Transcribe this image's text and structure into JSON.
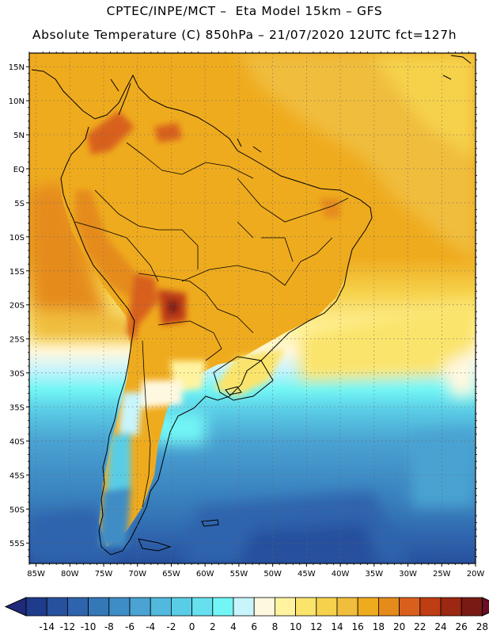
{
  "header": {
    "line1": "CPTEC/INPE/MCT –  Eta Model 15km – GFS",
    "line2": "Absolute Temperature (C) 850hPa – 21/07/2020 12UTC fct=127h"
  },
  "map": {
    "lat_labels": [
      "15N",
      "10N",
      "5N",
      "EQ",
      "5S",
      "10S",
      "15S",
      "20S",
      "25S",
      "30S",
      "35S",
      "40S",
      "45S",
      "50S",
      "55S"
    ],
    "lon_labels": [
      "85W",
      "80W",
      "75W",
      "70W",
      "65W",
      "60W",
      "55W",
      "50W",
      "45W",
      "40W",
      "35W",
      "30W",
      "25W",
      "20W"
    ],
    "lat_range_deg": [
      -58,
      17
    ],
    "lon_range_deg": [
      -86,
      -20
    ]
  },
  "colorbar": {
    "labels": [
      "-14",
      "-12",
      "-10",
      "-8",
      "-6",
      "-4",
      "-2",
      "0",
      "2",
      "4",
      "6",
      "8",
      "10",
      "12",
      "14",
      "16",
      "18",
      "20",
      "22",
      "24",
      "26",
      "28"
    ],
    "colors": [
      "#1f3b8c",
      "#27509d",
      "#2e64ad",
      "#3578b8",
      "#3f8dc6",
      "#4aa3d2",
      "#52b9de",
      "#5acde6",
      "#66e0ee",
      "#72f5f5",
      "#c8f4fb",
      "#fff8e0",
      "#fff3a0",
      "#fbe46c",
      "#f6d24c",
      "#f0bd3c",
      "#efab1e",
      "#e58b1c",
      "#d8601c",
      "#bf3d12",
      "#9c2712",
      "#7a1a14"
    ],
    "under_color": "#202a7a",
    "over_color": "#6b0d26"
  }
}
